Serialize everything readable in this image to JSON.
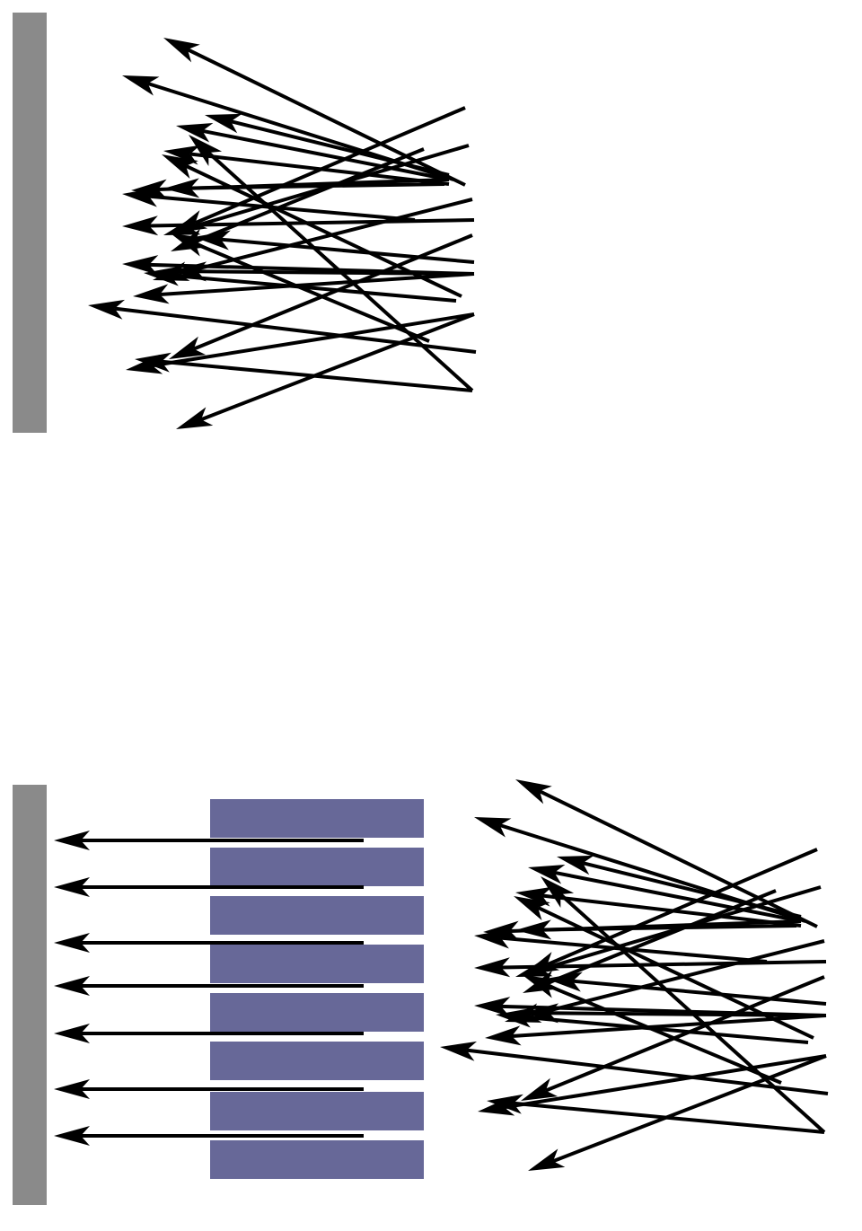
{
  "colors": {
    "wall": "#8a8a8a",
    "block": "#676898",
    "arrow": "#000000",
    "background": "#ffffff"
  },
  "panels": [
    {
      "name": "scattered-rays-top",
      "block_count": 0
    },
    {
      "name": "blocked-rays-bottom",
      "block_count": 8,
      "straight_arrow_count": 7
    }
  ]
}
